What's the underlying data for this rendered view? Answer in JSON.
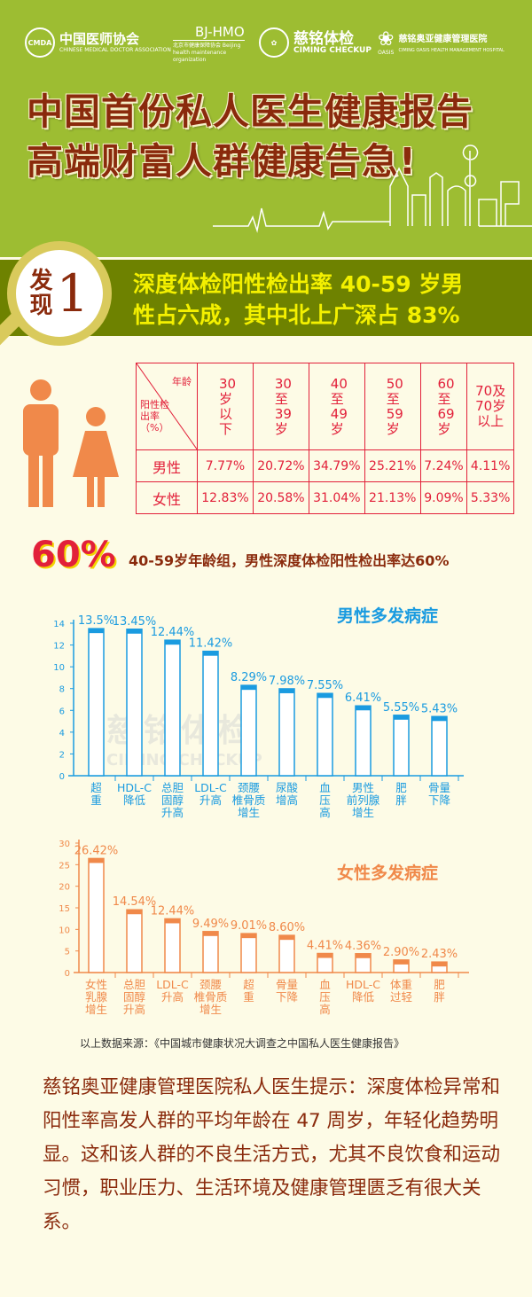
{
  "logos": [
    {
      "mark": "CMDA",
      "name": "中国医师协会",
      "sub": "CHINESE MEDICAL DOCTOR ASSOCIATION"
    },
    {
      "mark": "",
      "name": "BJ-HMO",
      "sub": "北京市健康保障协会 Beijing health maintenance organization"
    },
    {
      "mark": "",
      "name": "慈铭体检",
      "sub": "CIMING CHECKUP"
    },
    {
      "mark": "OASIS",
      "name": "慈铭奥亚健康管理医院",
      "sub": "CIMING OASIS HEALTH MANAGEMENT HOSPITAL"
    }
  ],
  "header": {
    "title_line1": "中国首份私人医生健康报告",
    "title_line2": "高端财富人群健康告急!"
  },
  "finding": {
    "badge_chars": "发现",
    "badge_num": "1",
    "line1": "深度体检阳性检出率 40-59 岁男",
    "line2": "性占六成，其中北上广深占 83%"
  },
  "colors": {
    "header_green": "#9dbd32",
    "band_olive": "#6e8200",
    "table_red": "#e2203a",
    "male_blue": "#1a9be0",
    "female_orange": "#f0894a",
    "title_brown": "#8a2a0c",
    "figure_orange": "#f0894a"
  },
  "table": {
    "corner_top": "年龄",
    "corner_bottom": "阳性检出率（%）",
    "headers": [
      "30岁以下",
      "30至39岁",
      "40至49岁",
      "50至59岁",
      "60至69岁",
      "70及70岁以上"
    ],
    "rows": [
      {
        "label": "男性",
        "values": [
          "7.77%",
          "20.72%",
          "34.79%",
          "25.21%",
          "7.24%",
          "4.11%"
        ]
      },
      {
        "label": "女性",
        "values": [
          "12.83%",
          "20.58%",
          "31.04%",
          "21.13%",
          "9.09%",
          "5.33%"
        ]
      }
    ]
  },
  "highlight": {
    "big": "60%",
    "text": "40-59岁年龄组，男性深度体检阳性检出率达60%"
  },
  "watermark": {
    "cn": "慈铭体检",
    "en": "CIMING CHECKUP"
  },
  "chart_data": [
    {
      "type": "bar",
      "title": "男性多发病症",
      "ylim": [
        0,
        14
      ],
      "yticks": [
        0,
        2,
        4,
        6,
        8,
        10,
        12,
        14
      ],
      "categories": [
        [
          "超",
          "重"
        ],
        [
          "HDL-C",
          "降低"
        ],
        [
          "总胆",
          "固醇",
          "升高"
        ],
        [
          "LDL-C",
          "升高"
        ],
        [
          "颈腰",
          "椎骨质",
          "增生"
        ],
        [
          "尿酸",
          "增高"
        ],
        [
          "血",
          "压",
          "高"
        ],
        [
          "男性",
          "前列腺",
          "增生"
        ],
        [
          "肥",
          "胖"
        ],
        [
          "骨量",
          "下降"
        ]
      ],
      "values": [
        13.5,
        13.45,
        12.44,
        11.42,
        8.29,
        7.98,
        7.55,
        6.41,
        5.55,
        5.43
      ],
      "labels": [
        "13.5%",
        "13.45%",
        "12.44%",
        "11.42%",
        "8.29%",
        "7.98%",
        "7.55%",
        "6.41%",
        "5.55%",
        "5.43%"
      ]
    },
    {
      "type": "bar",
      "title": "女性多发病症",
      "ylim": [
        0,
        30
      ],
      "yticks": [
        0,
        5,
        10,
        15,
        20,
        25,
        30
      ],
      "categories": [
        [
          "女性",
          "乳腺",
          "增生"
        ],
        [
          "总胆",
          "固醇",
          "升高"
        ],
        [
          "LDL-C",
          "升高"
        ],
        [
          "颈腰",
          "椎骨质",
          "增生"
        ],
        [
          "超",
          "重"
        ],
        [
          "骨量",
          "下降"
        ],
        [
          "血",
          "压",
          "高"
        ],
        [
          "HDL-C",
          "降低"
        ],
        [
          "体重",
          "过轻"
        ],
        [
          "肥",
          "胖"
        ]
      ],
      "values": [
        26.42,
        14.54,
        12.44,
        9.49,
        9.01,
        8.6,
        4.41,
        4.36,
        2.9,
        2.43
      ],
      "labels": [
        "26.42%",
        "14.54%",
        "12.44%",
        "9.49%",
        "9.01%",
        "8.60%",
        "4.41%",
        "4.36%",
        "2.90%",
        "2.43%"
      ]
    }
  ],
  "source": "以上数据来源：《中国城市健康状况大调查之中国私人医生健康报告》",
  "tip": "慈铭奥亚健康管理医院私人医生提示：深度体检异常和阳性率高发人群的平均年龄在 47 周岁，年轻化趋势明显。这和该人群的不良生活方式，尤其不良饮食和运动习惯，职业压力、生活环境及健康管理匮乏有很大关系。"
}
